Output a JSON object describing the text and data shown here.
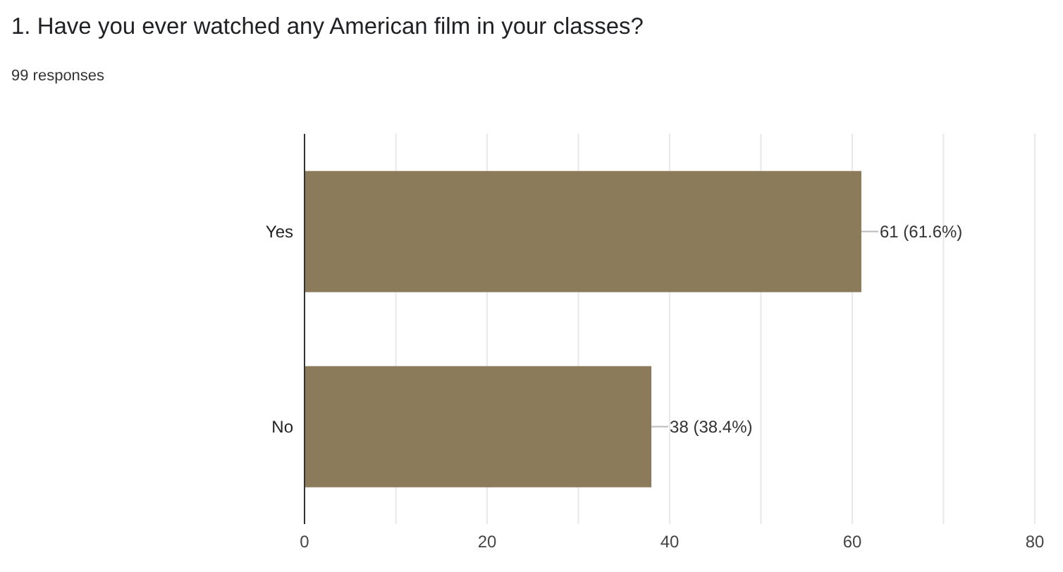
{
  "chart_data": {
    "type": "bar",
    "orientation": "horizontal",
    "title": "1. Have you ever watched any American film in your classes?",
    "subtitle": "99 responses",
    "categories": [
      "Yes",
      "No"
    ],
    "values": [
      61,
      38
    ],
    "color": "#8b7b5b",
    "value_labels": [
      "61 (61.6%)",
      "38 (38.4%)"
    ],
    "xlim": [
      0,
      80
    ],
    "xticks": [
      0,
      {
        "value": 10,
        "label": null
      },
      20,
      {
        "value": 30,
        "label": null
      },
      40,
      {
        "value": 50,
        "label": null
      },
      60,
      {
        "value": 70,
        "label": null
      },
      80
    ],
    "grid": "x",
    "legend": false
  }
}
